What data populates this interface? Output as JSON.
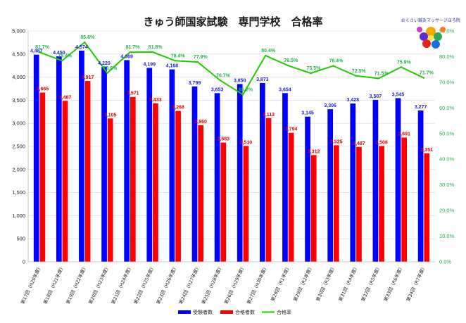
{
  "chart_data": {
    "type": "bar",
    "title": "きゅう師国家試験　専門学校　合格率",
    "categories": [
      "第17回（H20年度）",
      "第18回（H21年度）",
      "第19回（H22年度）",
      "第20回（H23年度）",
      "第21回（H24年度）",
      "第22回（H25年度）",
      "第23回（H26年度）",
      "第24回（H27年度）",
      "第25回（H28年度）",
      "第26回（H29年度）",
      "第27回（H30年度）",
      "第28回（R1年度）",
      "第29回（R2年度）",
      "第30回（R3年度）",
      "第31回（R4年度）",
      "第32回（R5年度）",
      "第33回（R6年度）",
      "第34回（R7年度）"
    ],
    "series": [
      {
        "name": "受験者数",
        "type": "bar",
        "color": "#0000ff",
        "values": [
          4487,
          4450,
          4574,
          4220,
          4369,
          4199,
          4168,
          3799,
          3653,
          3850,
          3873,
          3654,
          3145,
          3306,
          3428,
          3507,
          3545,
          3277
        ]
      },
      {
        "name": "合格者数",
        "type": "bar",
        "color": "#ff0000",
        "values": [
          3665,
          3487,
          3917,
          3105,
          3571,
          3433,
          3268,
          2960,
          2583,
          2510,
          3113,
          2794,
          2312,
          2525,
          2487,
          2508,
          2691,
          2351
        ]
      },
      {
        "name": "合格率",
        "type": "line",
        "axis": "right",
        "color": "#22cc00",
        "values": [
          81.7,
          78.4,
          85.6,
          73.6,
          81.7,
          81.8,
          78.4,
          77.9,
          70.7,
          65.2,
          80.4,
          76.5,
          73.5,
          76.4,
          72.5,
          71.5,
          75.9,
          71.7
        ]
      }
    ],
    "y_left": {
      "min": 0,
      "max": 5000,
      "step": 500
    },
    "y_right": {
      "min": 0,
      "max": 90,
      "step": 10,
      "format": "percent_one_decimal"
    },
    "grid": true,
    "legend_position": "bottom"
  },
  "logo": {
    "text": "おくさい鍼灸マッサージほろ院"
  }
}
